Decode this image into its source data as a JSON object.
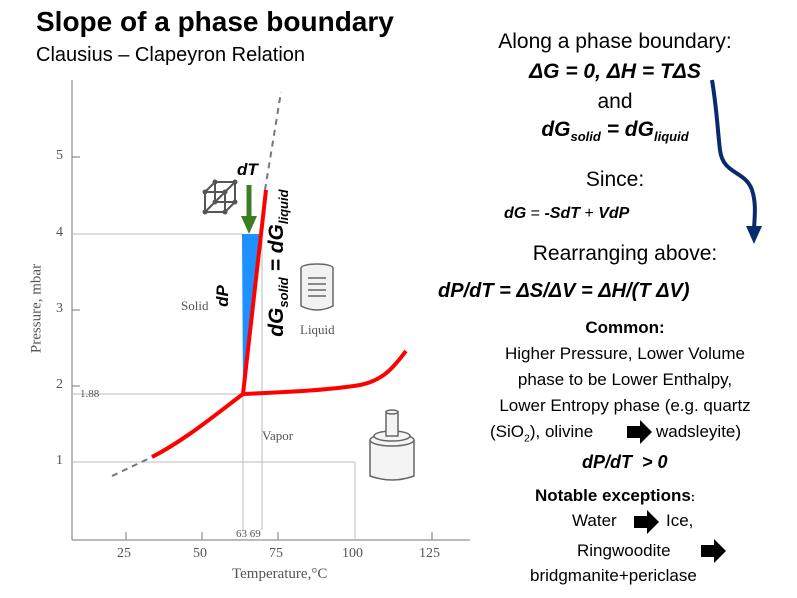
{
  "title": "Slope of a phase boundary",
  "subtitle": "Clausius – Clapeyron Relation",
  "right_panel": {
    "line1": "Along a phase boundary:",
    "line2": "ΔG = 0, ΔH = TΔS",
    "line3": "and",
    "line4_a": "dG",
    "line4_sub_a": "solid",
    "line4_b": " = dG",
    "line4_sub_b": "liquid",
    "since": "Since:",
    "dg_a": "dG",
    "dg_eq": " = ",
    "dg_b": "-SdT",
    "dg_plus": " + ",
    "dg_c": "VdP",
    "rearranging": "Rearranging above:",
    "clapeyron": "dP/dT = ΔS/ΔV = ΔH/(T ΔV)",
    "common_heading": "Common:",
    "common_l1": "Higher Pressure, Lower Volume",
    "common_l2": "phase to be Lower Enthalpy,",
    "common_l3": "Lower Entropy phase (e.g. quartz",
    "common_l4_a": "(SiO",
    "common_l4_sub": "2",
    "common_l4_b": "), olivine",
    "common_l4_c": "wadsleyite)",
    "positive_slope": "dP/dT  > 0",
    "exceptions_heading": "Notable exceptions",
    "exceptions_colon": ":",
    "exc_water": "Water",
    "exc_ice": "Ice,",
    "exc_ringwoodite": "Ringwoodite",
    "exc_bridgmanite": "bridgmanite+periclase"
  },
  "diagram": {
    "ylabel": "Pressure, mbar",
    "xlabel": "Temperature,°C",
    "y_ticks": [
      "5",
      "4",
      "3",
      "2",
      "1"
    ],
    "x_ticks": [
      "25",
      "50",
      "75",
      "100",
      "125"
    ],
    "triple_point_pressure": "1.88",
    "triple_point_temps": "63 69",
    "region_solid": "Solid",
    "region_liquid": "Liquid",
    "region_vapor": "Vapor",
    "label_dT": "dT",
    "label_dP": "dP",
    "label_dg_a": "dG",
    "label_dg_sub_a": "solid",
    "label_dg_b": " = dG",
    "label_dg_sub_b": "liquid"
  },
  "colors": {
    "boundary": "#ff0000",
    "wedge": "#1e90ff",
    "arrow_dT": "#3a7d22",
    "curve_arrow": "#0a2a6e",
    "axis": "#777777"
  },
  "icons": [
    "crystal-lattice-icon",
    "beaker-icon",
    "piston-cylinder-icon",
    "right-arrow-icon"
  ]
}
